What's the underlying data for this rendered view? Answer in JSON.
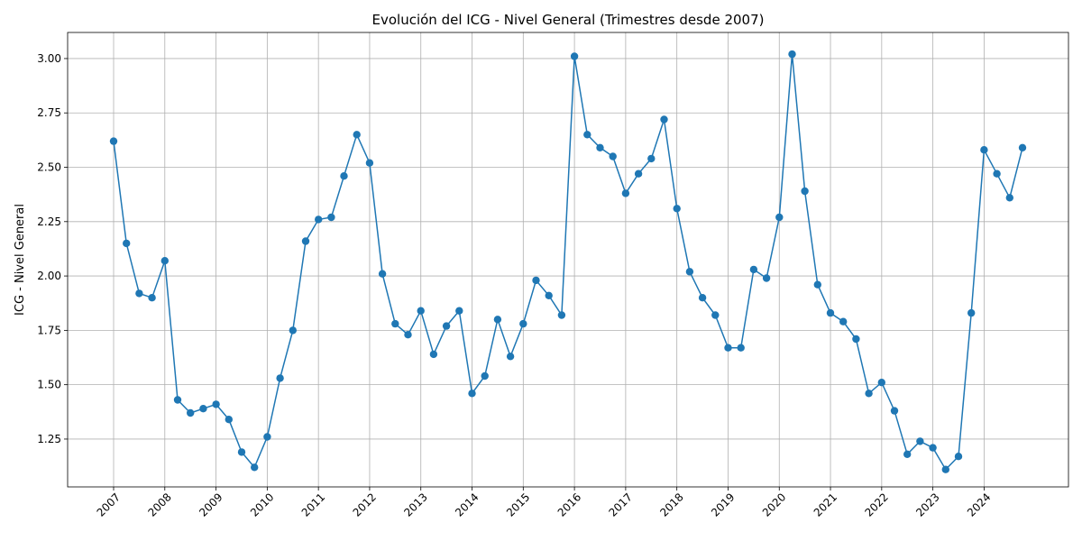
{
  "chart_data": {
    "type": "line",
    "title": "Evolución del ICG - Nivel General (Trimestres desde 2007)",
    "xlabel": "",
    "ylabel": "ICG - Nivel General",
    "grid": true,
    "legend": "none",
    "color": "#1f77b4",
    "x_ticks": [
      "2007",
      "2008",
      "2009",
      "2010",
      "2011",
      "2012",
      "2013",
      "2014",
      "2015",
      "2016",
      "2017",
      "2018",
      "2019",
      "2020",
      "2021",
      "2022",
      "2023",
      "2024"
    ],
    "y_ticks": [
      "1.25",
      "1.50",
      "1.75",
      "2.00",
      "2.25",
      "2.50",
      "2.75",
      "3.00"
    ],
    "ylim": [
      1.03,
      3.12
    ],
    "x": [
      "2007-T1",
      "2007-T2",
      "2007-T3",
      "2007-T4",
      "2008-T1",
      "2008-T2",
      "2008-T3",
      "2008-T4",
      "2009-T1",
      "2009-T2",
      "2009-T3",
      "2009-T4",
      "2010-T1",
      "2010-T2",
      "2010-T3",
      "2010-T4",
      "2011-T1",
      "2011-T2",
      "2011-T3",
      "2011-T4",
      "2012-T1",
      "2012-T2",
      "2012-T3",
      "2012-T4",
      "2013-T1",
      "2013-T2",
      "2013-T3",
      "2013-T4",
      "2014-T1",
      "2014-T2",
      "2014-T3",
      "2014-T4",
      "2015-T1",
      "2015-T2",
      "2015-T3",
      "2015-T4",
      "2016-T1",
      "2016-T2",
      "2016-T3",
      "2016-T4",
      "2017-T1",
      "2017-T2",
      "2017-T3",
      "2017-T4",
      "2018-T1",
      "2018-T2",
      "2018-T3",
      "2018-T4",
      "2019-T1",
      "2019-T2",
      "2019-T3",
      "2019-T4",
      "2020-T1",
      "2020-T2",
      "2020-T3",
      "2020-T4",
      "2021-T1",
      "2021-T2",
      "2021-T3",
      "2021-T4",
      "2022-T1",
      "2022-T2",
      "2022-T3",
      "2022-T4",
      "2023-T1",
      "2023-T2",
      "2023-T3",
      "2023-T4",
      "2024-T1",
      "2024-T2",
      "2024-T3",
      "2024-T4"
    ],
    "values": [
      2.62,
      2.15,
      1.92,
      1.9,
      2.07,
      1.43,
      1.37,
      1.39,
      1.41,
      1.34,
      1.19,
      1.12,
      1.26,
      1.53,
      1.75,
      2.16,
      2.26,
      2.27,
      2.46,
      2.65,
      2.52,
      2.01,
      1.78,
      1.73,
      1.84,
      1.64,
      1.77,
      1.84,
      1.46,
      1.54,
      1.8,
      1.63,
      1.78,
      1.98,
      1.91,
      1.82,
      3.01,
      2.65,
      2.59,
      2.55,
      2.38,
      2.47,
      2.54,
      2.72,
      2.31,
      2.02,
      1.9,
      1.82,
      1.67,
      1.67,
      2.03,
      1.99,
      2.27,
      3.02,
      2.39,
      1.96,
      1.83,
      1.79,
      1.71,
      1.46,
      1.51,
      1.38,
      1.18,
      1.24,
      1.21,
      1.11,
      1.17,
      1.83,
      2.58,
      2.47,
      2.36,
      2.59
    ]
  }
}
